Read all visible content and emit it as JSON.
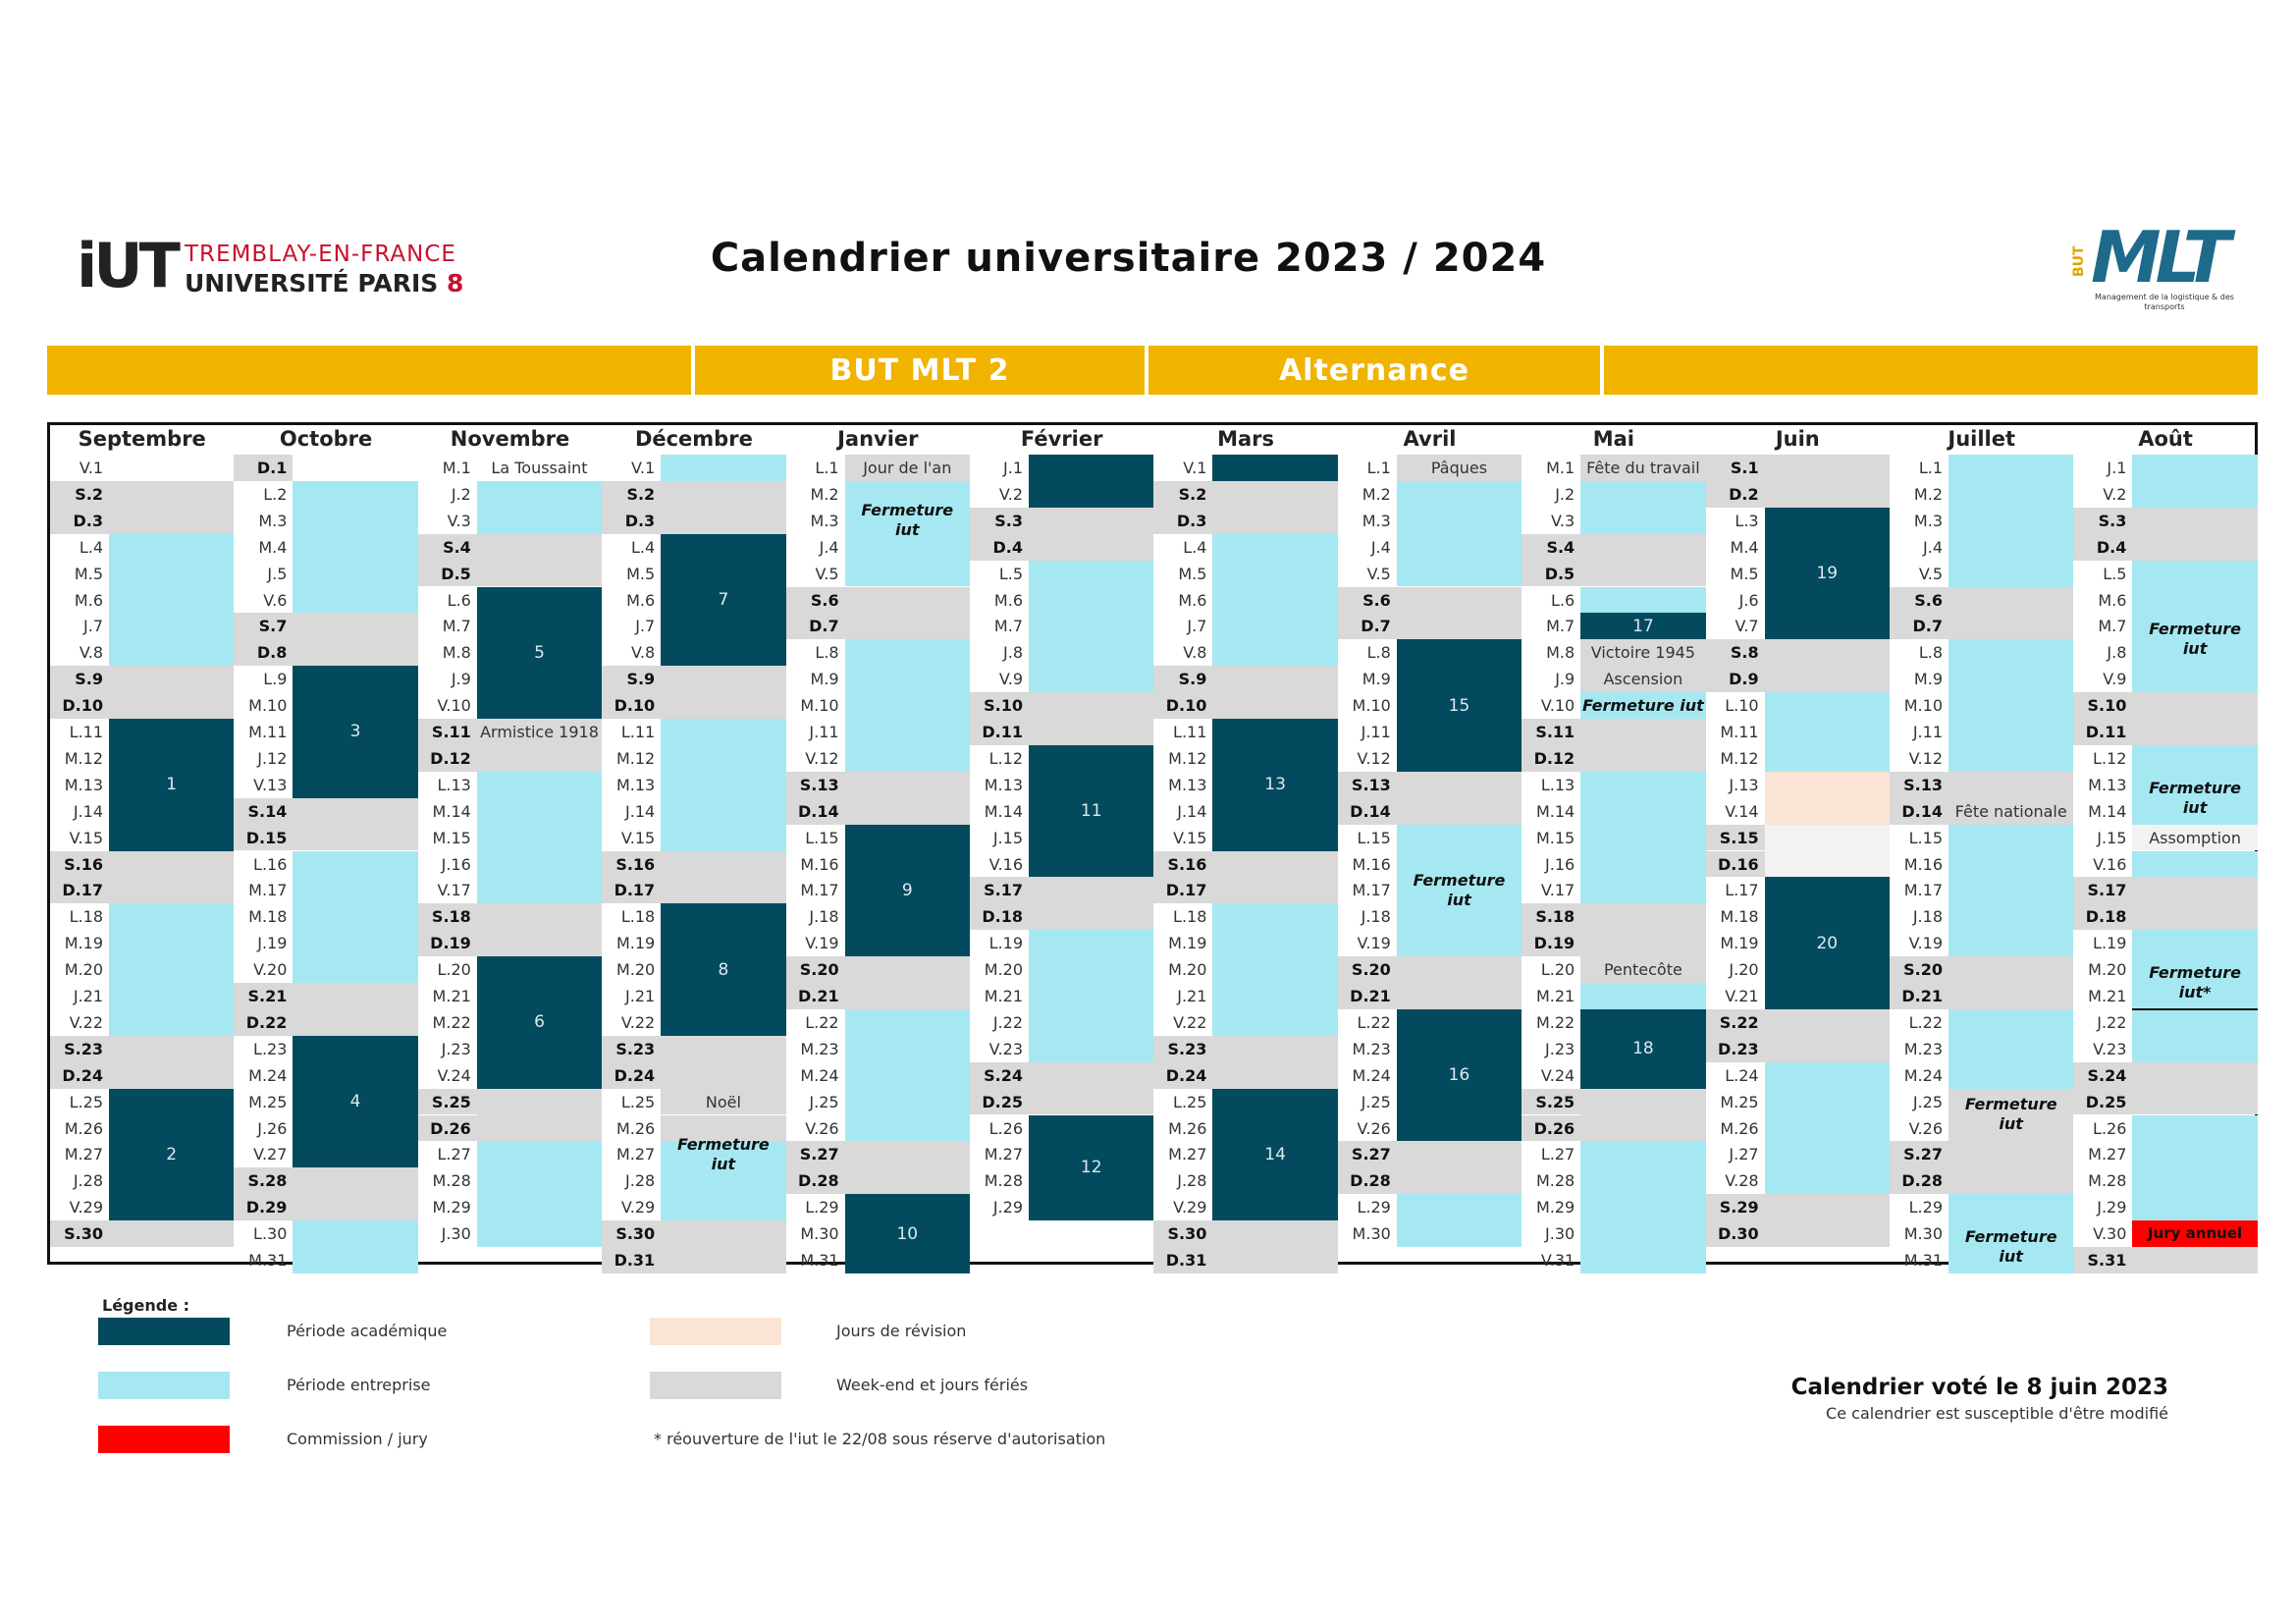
{
  "header": {
    "logo_line1": "TREMBLAY-EN-FRANCE",
    "logo_line2": "UNIVERSITÉ PARIS ",
    "logo_line2_num": "8",
    "logo_mark": "iUT",
    "title": "Calendrier universitaire 2023 / 2024",
    "mlt_logo": "MLT",
    "mlt_but": "BUT",
    "mlt_sub": "Management de la logistique & des transports"
  },
  "banner": {
    "left": "BUT MLT 2",
    "right": "Alternance"
  },
  "colors": {
    "academique": "#034a5e",
    "entreprise": "#a6e8f2",
    "jury": "#ff0000",
    "revision": "#fbe4d6",
    "weekend": "#d9d9d9",
    "banner": "#f0b400"
  },
  "months": [
    {
      "name": "Septembre",
      "days": [
        "V.1",
        "S.2",
        "D.3",
        "L.4",
        "M.5",
        "M.6",
        "J.7",
        "V.8",
        "S.9",
        "D.10",
        "L.11",
        "M.12",
        "M.13",
        "J.14",
        "V.15",
        "S.16",
        "D.17",
        "L.18",
        "M.19",
        "M.20",
        "J.21",
        "V.22",
        "S.23",
        "D.24",
        "L.25",
        "M.26",
        "M.27",
        "J.28",
        "V.29",
        "S.30"
      ]
    },
    {
      "name": "Octobre",
      "days": [
        "D.1",
        "L.2",
        "M.3",
        "M.4",
        "J.5",
        "V.6",
        "S.7",
        "D.8",
        "L.9",
        "M.10",
        "M.11",
        "J.12",
        "V.13",
        "S.14",
        "D.15",
        "L.16",
        "M.17",
        "M.18",
        "J.19",
        "V.20",
        "S.21",
        "D.22",
        "L.23",
        "M.24",
        "M.25",
        "J.26",
        "V.27",
        "S.28",
        "D.29",
        "L.30",
        "M.31"
      ]
    },
    {
      "name": "Novembre",
      "days": [
        "M.1",
        "J.2",
        "V.3",
        "S.4",
        "D.5",
        "L.6",
        "M.7",
        "M.8",
        "J.9",
        "V.10",
        "S.11",
        "D.12",
        "L.13",
        "M.14",
        "M.15",
        "J.16",
        "V.17",
        "S.18",
        "D.19",
        "L.20",
        "M.21",
        "M.22",
        "J.23",
        "V.24",
        "S.25",
        "D.26",
        "L.27",
        "M.28",
        "M.29",
        "J.30"
      ]
    },
    {
      "name": "Décembre",
      "days": [
        "V.1",
        "S.2",
        "D.3",
        "L.4",
        "M.5",
        "M.6",
        "J.7",
        "V.8",
        "S.9",
        "D.10",
        "L.11",
        "M.12",
        "M.13",
        "J.14",
        "V.15",
        "S.16",
        "D.17",
        "L.18",
        "M.19",
        "M.20",
        "J.21",
        "V.22",
        "S.23",
        "D.24",
        "L.25",
        "M.26",
        "M.27",
        "J.28",
        "V.29",
        "S.30",
        "D.31"
      ]
    },
    {
      "name": "Janvier",
      "days": [
        "L.1",
        "M.2",
        "M.3",
        "J.4",
        "V.5",
        "S.6",
        "D.7",
        "L.8",
        "M.9",
        "M.10",
        "J.11",
        "V.12",
        "S.13",
        "D.14",
        "L.15",
        "M.16",
        "M.17",
        "J.18",
        "V.19",
        "S.20",
        "D.21",
        "L.22",
        "M.23",
        "M.24",
        "J.25",
        "V.26",
        "S.27",
        "D.28",
        "L.29",
        "M.30",
        "M.31"
      ]
    },
    {
      "name": "Février",
      "days": [
        "J.1",
        "V.2",
        "S.3",
        "D.4",
        "L.5",
        "M.6",
        "M.7",
        "J.8",
        "V.9",
        "S.10",
        "D.11",
        "L.12",
        "M.13",
        "M.14",
        "J.15",
        "V.16",
        "S.17",
        "D.18",
        "L.19",
        "M.20",
        "M.21",
        "J.22",
        "V.23",
        "S.24",
        "D.25",
        "L.26",
        "M.27",
        "M.28",
        "J.29"
      ]
    },
    {
      "name": "Mars",
      "days": [
        "V.1",
        "S.2",
        "D.3",
        "L.4",
        "M.5",
        "M.6",
        "J.7",
        "V.8",
        "S.9",
        "D.10",
        "L.11",
        "M.12",
        "M.13",
        "J.14",
        "V.15",
        "S.16",
        "D.17",
        "L.18",
        "M.19",
        "M.20",
        "J.21",
        "V.22",
        "S.23",
        "D.24",
        "L.25",
        "M.26",
        "M.27",
        "J.28",
        "V.29",
        "S.30",
        "D.31"
      ]
    },
    {
      "name": "Avril",
      "days": [
        "L.1",
        "M.2",
        "M.3",
        "J.4",
        "V.5",
        "S.6",
        "D.7",
        "L.8",
        "M.9",
        "M.10",
        "J.11",
        "V.12",
        "S.13",
        "D.14",
        "L.15",
        "M.16",
        "M.17",
        "J.18",
        "V.19",
        "S.20",
        "D.21",
        "L.22",
        "M.23",
        "M.24",
        "J.25",
        "V.26",
        "S.27",
        "D.28",
        "L.29",
        "M.30"
      ]
    },
    {
      "name": "Mai",
      "days": [
        "M.1",
        "J.2",
        "V.3",
        "S.4",
        "D.5",
        "L.6",
        "M.7",
        "M.8",
        "J.9",
        "V.10",
        "S.11",
        "D.12",
        "L.13",
        "M.14",
        "M.15",
        "J.16",
        "V.17",
        "S.18",
        "D.19",
        "L.20",
        "M.21",
        "M.22",
        "J.23",
        "V.24",
        "S.25",
        "D.26",
        "L.27",
        "M.28",
        "M.29",
        "J.30",
        "V.31"
      ]
    },
    {
      "name": "Juin",
      "days": [
        "S.1",
        "D.2",
        "L.3",
        "M.4",
        "M.5",
        "J.6",
        "V.7",
        "S.8",
        "D.9",
        "L.10",
        "M.11",
        "M.12",
        "J.13",
        "V.14",
        "S.15",
        "D.16",
        "L.17",
        "M.18",
        "M.19",
        "J.20",
        "V.21",
        "S.22",
        "D.23",
        "L.24",
        "M.25",
        "M.26",
        "J.27",
        "V.28",
        "S.29",
        "D.30"
      ]
    },
    {
      "name": "Juillet",
      "days": [
        "L.1",
        "M.2",
        "M.3",
        "J.4",
        "V.5",
        "S.6",
        "D.7",
        "L.8",
        "M.9",
        "M.10",
        "J.11",
        "V.12",
        "S.13",
        "D.14",
        "L.15",
        "M.16",
        "M.17",
        "J.18",
        "V.19",
        "S.20",
        "D.21",
        "L.22",
        "M.23",
        "M.24",
        "J.25",
        "V.26",
        "S.27",
        "D.28",
        "L.29",
        "M.30",
        "M.31"
      ]
    },
    {
      "name": "Août",
      "days": [
        "J.1",
        "V.2",
        "S.3",
        "D.4",
        "L.5",
        "M.6",
        "M.7",
        "J.8",
        "V.9",
        "S.10",
        "D.11",
        "L.12",
        "M.13",
        "M.14",
        "J.15",
        "V.16",
        "S.17",
        "D.18",
        "L.19",
        "M.20",
        "M.21",
        "J.22",
        "V.23",
        "S.24",
        "D.25",
        "L.26",
        "M.27",
        "M.28",
        "J.29",
        "V.30",
        "S.31"
      ]
    }
  ],
  "week_numbers": [
    "1",
    "2",
    "3",
    "4",
    "5",
    "6",
    "7",
    "8",
    "9",
    "10",
    "11",
    "12",
    "13",
    "14",
    "15",
    "16",
    "17",
    "18",
    "19",
    "20"
  ],
  "notes": {
    "toussaint": "La Toussaint",
    "armistice": "Armistice 1918",
    "noel": "Noël",
    "jour_an": "Jour de l'an",
    "paques": "Pâques",
    "fete_travail": "Fête du travail",
    "victoire": "Victoire 1945",
    "ascension": "Ascension",
    "pentecote": "Pentecôte",
    "fete_nationale": "Fête nationale",
    "assomption": "Assomption",
    "fermeture_iut_inline": "Fermeture iut",
    "fermeture": "Fermeture",
    "iut": "iut",
    "iut_star": "iut*",
    "jury_annuel": "Jury annuel"
  },
  "legend": {
    "title": "Légende :",
    "academique": "Période académique",
    "entreprise": "Période entreprise",
    "jury": "Commission / jury",
    "revision": "Jours de révision",
    "weekend": "Week-end et jours fériés",
    "footnote": "* réouverture de l'iut le 22/08 sous réserve d'autorisation"
  },
  "vote": {
    "title": "Calendrier voté le 8 juin 2023",
    "subtitle": "Ce calendrier est susceptible d'être modifié"
  }
}
